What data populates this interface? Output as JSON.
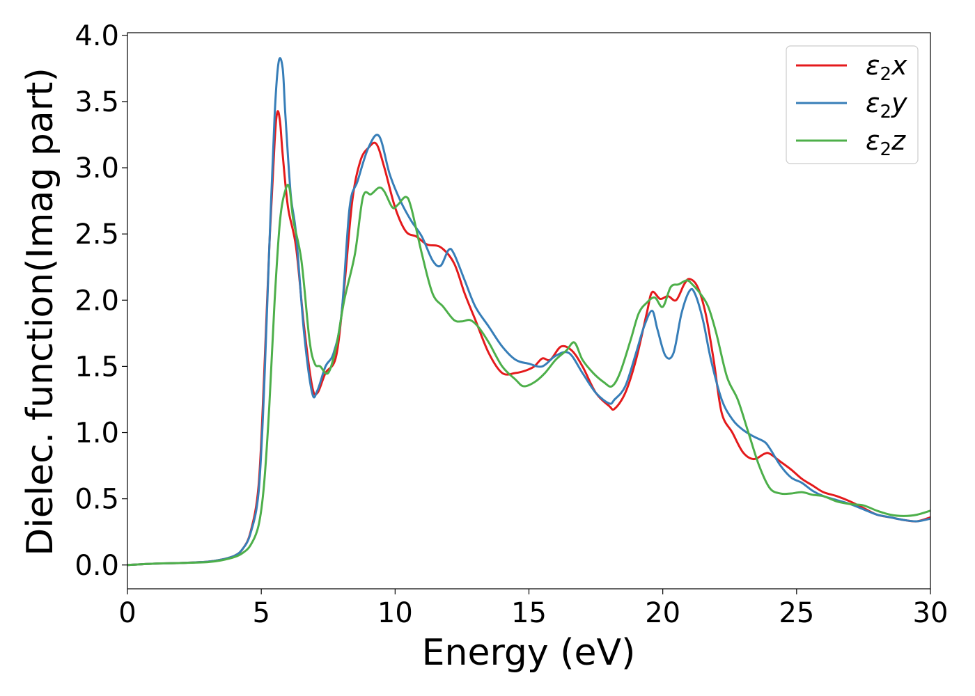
{
  "chart_data": {
    "type": "line",
    "xlabel": "Energy (eV)",
    "ylabel": "Dielec. function(Imag part)",
    "xlim": [
      0,
      30
    ],
    "ylim": [
      -0.18,
      4.02
    ],
    "xticks": [
      0,
      5,
      10,
      15,
      20,
      25,
      30
    ],
    "yticks": [
      0.0,
      0.5,
      1.0,
      1.5,
      2.0,
      2.5,
      3.0,
      3.5,
      4.0
    ],
    "xtick_labels": [
      "0",
      "5",
      "10",
      "15",
      "20",
      "25",
      "30"
    ],
    "ytick_labels": [
      "0.0",
      "0.5",
      "1.0",
      "1.5",
      "2.0",
      "2.5",
      "3.0",
      "3.5",
      "4.0"
    ],
    "grid": false,
    "legend_position": "top-right",
    "series": [
      {
        "name": "ε₂x",
        "legend_base": "ε",
        "legend_sub": "2",
        "legend_suffix": "x",
        "color": "#e41a1c",
        "x": [
          0,
          1,
          2,
          3,
          3.5,
          4,
          4.3,
          4.6,
          4.9,
          5.1,
          5.3,
          5.5,
          5.6,
          5.7,
          5.8,
          6.0,
          6.3,
          6.6,
          6.9,
          7.1,
          7.4,
          7.8,
          8.1,
          8.4,
          8.7,
          9.0,
          9.3,
          9.6,
          10.0,
          10.4,
          10.8,
          11.2,
          11.7,
          12.2,
          12.6,
          13.0,
          13.5,
          14.0,
          14.5,
          14.9,
          15.2,
          15.5,
          15.8,
          16.2,
          16.6,
          17.0,
          17.5,
          18.0,
          18.2,
          18.6,
          19.0,
          19.4,
          19.6,
          19.9,
          20.2,
          20.5,
          20.8,
          21.0,
          21.3,
          21.6,
          21.9,
          22.2,
          22.6,
          23.0,
          23.4,
          23.8,
          24.0,
          24.4,
          24.8,
          25.2,
          25.6,
          26.0,
          26.5,
          27.0,
          27.5,
          28.0,
          28.5,
          29.0,
          29.5,
          30.0
        ],
        "y": [
          0.0,
          0.01,
          0.015,
          0.025,
          0.04,
          0.07,
          0.12,
          0.25,
          0.6,
          1.4,
          2.4,
          3.2,
          3.42,
          3.35,
          3.1,
          2.7,
          2.4,
          1.8,
          1.35,
          1.3,
          1.45,
          1.58,
          2.1,
          2.75,
          3.05,
          3.15,
          3.18,
          3.0,
          2.7,
          2.52,
          2.48,
          2.42,
          2.4,
          2.28,
          2.05,
          1.85,
          1.6,
          1.45,
          1.45,
          1.47,
          1.5,
          1.56,
          1.55,
          1.65,
          1.62,
          1.5,
          1.3,
          1.2,
          1.18,
          1.3,
          1.55,
          1.9,
          2.06,
          2.01,
          2.03,
          2.0,
          2.12,
          2.16,
          2.1,
          1.9,
          1.55,
          1.15,
          1.0,
          0.85,
          0.8,
          0.84,
          0.84,
          0.78,
          0.72,
          0.65,
          0.6,
          0.55,
          0.52,
          0.48,
          0.43,
          0.38,
          0.36,
          0.34,
          0.33,
          0.36
        ]
      },
      {
        "name": "ε₂y",
        "legend_base": "ε",
        "legend_sub": "2",
        "legend_suffix": "y",
        "color": "#377eb8",
        "x": [
          0,
          1,
          2,
          3,
          3.5,
          4,
          4.3,
          4.6,
          4.9,
          5.1,
          5.3,
          5.5,
          5.65,
          5.8,
          5.9,
          6.1,
          6.3,
          6.6,
          6.9,
          7.1,
          7.4,
          7.7,
          8.0,
          8.3,
          8.6,
          9.0,
          9.4,
          9.8,
          10.2,
          10.6,
          11.0,
          11.4,
          11.7,
          12.0,
          12.2,
          12.6,
          13.0,
          13.5,
          14.0,
          14.5,
          15.0,
          15.5,
          16.0,
          16.5,
          17.0,
          17.5,
          18.0,
          18.2,
          18.6,
          19.0,
          19.3,
          19.6,
          19.8,
          20.1,
          20.4,
          20.7,
          21.0,
          21.2,
          21.5,
          21.8,
          22.2,
          22.6,
          23.0,
          23.4,
          23.8,
          24.0,
          24.4,
          24.8,
          25.2,
          25.6,
          26.0,
          26.5,
          27.0,
          27.5,
          28.0,
          28.5,
          29.0,
          29.5,
          30.0
        ],
        "y": [
          0.0,
          0.01,
          0.015,
          0.025,
          0.04,
          0.07,
          0.12,
          0.24,
          0.55,
          1.3,
          2.4,
          3.4,
          3.8,
          3.75,
          3.4,
          2.8,
          2.5,
          1.75,
          1.3,
          1.32,
          1.5,
          1.6,
          1.9,
          2.7,
          2.9,
          3.15,
          3.24,
          2.95,
          2.75,
          2.6,
          2.48,
          2.3,
          2.26,
          2.38,
          2.35,
          2.15,
          1.95,
          1.8,
          1.65,
          1.55,
          1.52,
          1.5,
          1.58,
          1.6,
          1.45,
          1.3,
          1.22,
          1.25,
          1.35,
          1.6,
          1.8,
          1.92,
          1.78,
          1.58,
          1.6,
          1.9,
          2.07,
          2.05,
          1.85,
          1.55,
          1.25,
          1.1,
          1.02,
          0.97,
          0.93,
          0.88,
          0.75,
          0.66,
          0.62,
          0.56,
          0.52,
          0.49,
          0.46,
          0.42,
          0.38,
          0.36,
          0.34,
          0.33,
          0.35
        ]
      },
      {
        "name": "ε₂z",
        "legend_base": "ε",
        "legend_sub": "2",
        "legend_suffix": "z",
        "color": "#4daf4a",
        "x": [
          0,
          1,
          2,
          3,
          3.5,
          4,
          4.3,
          4.6,
          4.9,
          5.1,
          5.3,
          5.5,
          5.7,
          5.9,
          6.05,
          6.2,
          6.5,
          6.8,
          7.0,
          7.2,
          7.5,
          7.8,
          8.1,
          8.5,
          8.8,
          9.1,
          9.4,
          9.6,
          9.9,
          10.1,
          10.4,
          10.6,
          11.0,
          11.4,
          11.8,
          12.2,
          12.5,
          12.8,
          13.1,
          13.5,
          14.0,
          14.5,
          14.8,
          15.2,
          15.6,
          16.0,
          16.4,
          16.7,
          17.0,
          17.4,
          17.8,
          18.1,
          18.4,
          18.8,
          19.1,
          19.4,
          19.7,
          20.0,
          20.3,
          20.6,
          20.9,
          21.1,
          21.4,
          21.7,
          22.0,
          22.4,
          22.8,
          23.2,
          23.6,
          24.0,
          24.4,
          24.8,
          25.2,
          25.6,
          26.0,
          26.5,
          27.0,
          27.5,
          28.0,
          28.5,
          29.0,
          29.5,
          30.0
        ],
        "y": [
          0.0,
          0.01,
          0.015,
          0.022,
          0.035,
          0.06,
          0.09,
          0.15,
          0.3,
          0.6,
          1.2,
          2.0,
          2.6,
          2.83,
          2.85,
          2.6,
          2.3,
          1.7,
          1.52,
          1.5,
          1.45,
          1.65,
          2.0,
          2.35,
          2.78,
          2.8,
          2.85,
          2.82,
          2.7,
          2.72,
          2.78,
          2.7,
          2.35,
          2.05,
          1.95,
          1.85,
          1.84,
          1.85,
          1.8,
          1.68,
          1.5,
          1.4,
          1.35,
          1.38,
          1.45,
          1.55,
          1.62,
          1.68,
          1.55,
          1.45,
          1.38,
          1.35,
          1.45,
          1.7,
          1.9,
          1.98,
          2.02,
          1.95,
          2.1,
          2.12,
          2.15,
          2.12,
          2.05,
          1.95,
          1.75,
          1.42,
          1.25,
          1.0,
          0.75,
          0.58,
          0.54,
          0.54,
          0.55,
          0.53,
          0.52,
          0.48,
          0.46,
          0.45,
          0.41,
          0.38,
          0.37,
          0.38,
          0.41
        ]
      }
    ]
  }
}
